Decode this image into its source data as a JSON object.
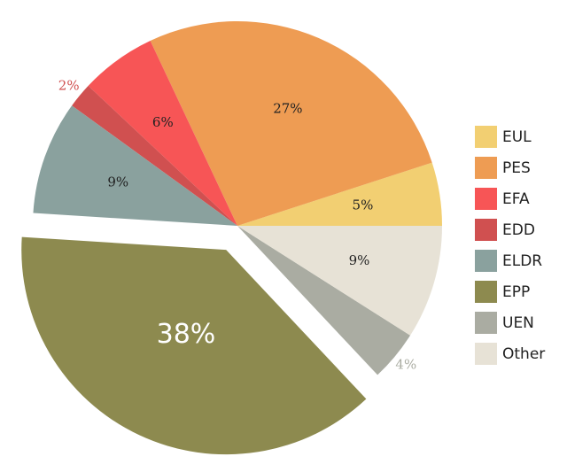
{
  "chart_data": {
    "type": "pie",
    "title": "",
    "slices": [
      {
        "name": "EUL",
        "value": 5,
        "label": "5%",
        "color": "#f2cf72",
        "label_color": "#222222"
      },
      {
        "name": "PES",
        "value": 27,
        "label": "27%",
        "color": "#ee9c53",
        "label_color": "#222222"
      },
      {
        "name": "EFA",
        "value": 6,
        "label": "6%",
        "color": "#f75556",
        "label_color": "#222222"
      },
      {
        "name": "EDD",
        "value": 2,
        "label": "2%",
        "color": "#d05050",
        "label_color": "#d05050"
      },
      {
        "name": "ELDR",
        "value": 9,
        "label": "9%",
        "color": "#8aa19e",
        "label_color": "#222222"
      },
      {
        "name": "EPP",
        "value": 38,
        "label": "38%",
        "color": "#8d8a4f",
        "label_color": "#ffffff",
        "exploded": true
      },
      {
        "name": "UEN",
        "value": 4,
        "label": "4%",
        "color": "#aaaca2",
        "label_color": "#aaaca2"
      },
      {
        "name": "Other",
        "value": 9,
        "label": "9%",
        "color": "#e7e2d6",
        "label_color": "#222222"
      }
    ],
    "legend": [
      "EUL",
      "PES",
      "EFA",
      "EDD",
      "ELDR",
      "EPP",
      "UEN",
      "Other"
    ],
    "legend_position": "right"
  }
}
